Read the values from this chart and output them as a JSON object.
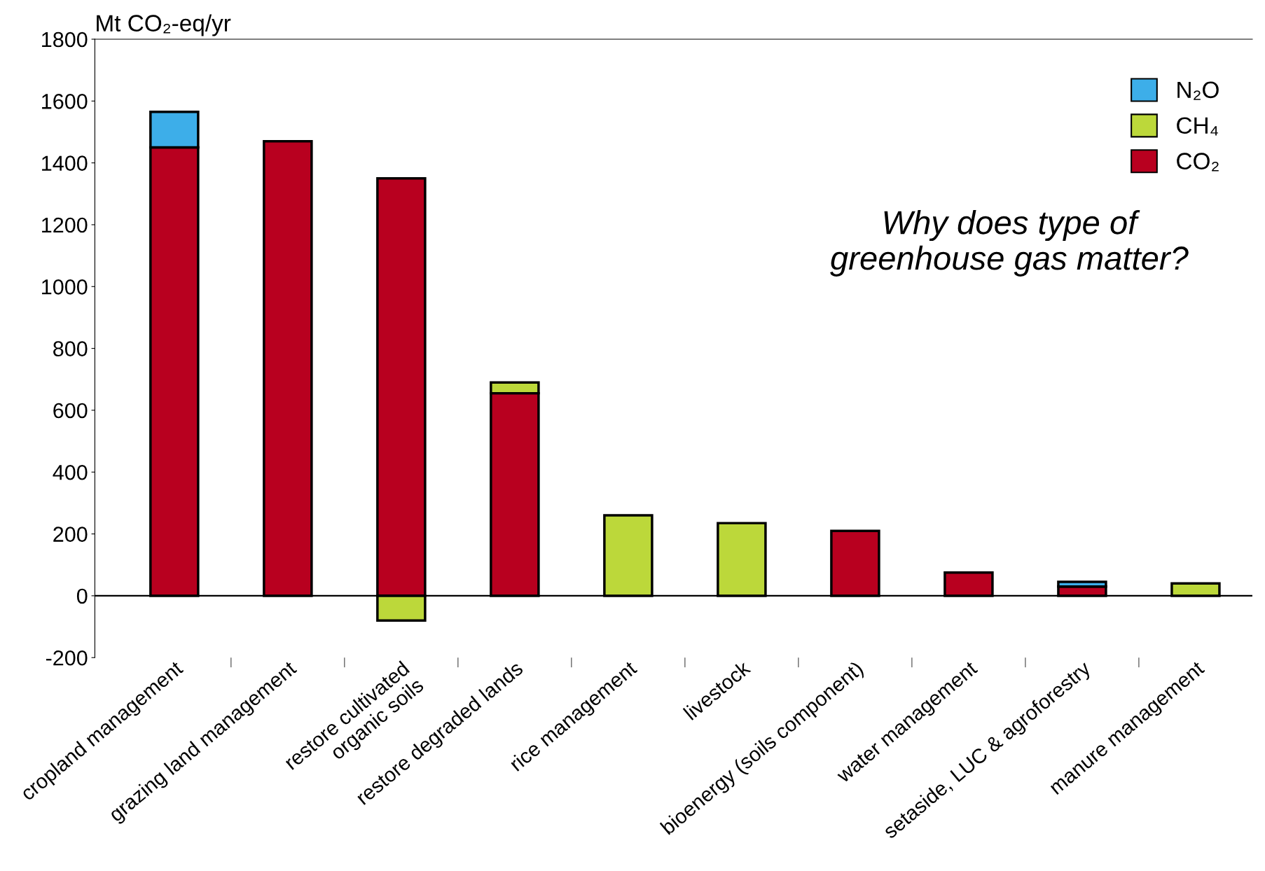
{
  "chart_data": {
    "type": "bar",
    "stacked": true,
    "ylabel": "Mt CO₂-eq/yr",
    "categories": [
      "cropland management",
      "grazing land management",
      "restore cultivated\norganic soils",
      "restore degraded lands",
      "rice management",
      "livestock",
      "bioenergy (soils component)",
      "water management",
      "setaside, LUC & agroforestry",
      "manure management"
    ],
    "series": [
      {
        "name": "CO₂",
        "color": "#b8001f",
        "values": [
          1450,
          1470,
          1350,
          655,
          0,
          0,
          210,
          75,
          30,
          0
        ]
      },
      {
        "name": "CH₄",
        "color": "#bcd83a",
        "values": [
          0,
          0,
          -80,
          35,
          260,
          235,
          0,
          0,
          0,
          40
        ]
      },
      {
        "name": "N₂O",
        "color": "#3daee9",
        "values": [
          115,
          0,
          0,
          0,
          0,
          0,
          0,
          0,
          15,
          0
        ]
      }
    ],
    "ylim": [
      -200,
      1800
    ],
    "yticks": [
      -200,
      0,
      200,
      400,
      600,
      800,
      1000,
      1200,
      1400,
      1600,
      1800
    ],
    "legend": "top right",
    "annotations": [
      "Why does type of\ngreenhouse gas matter?"
    ]
  }
}
